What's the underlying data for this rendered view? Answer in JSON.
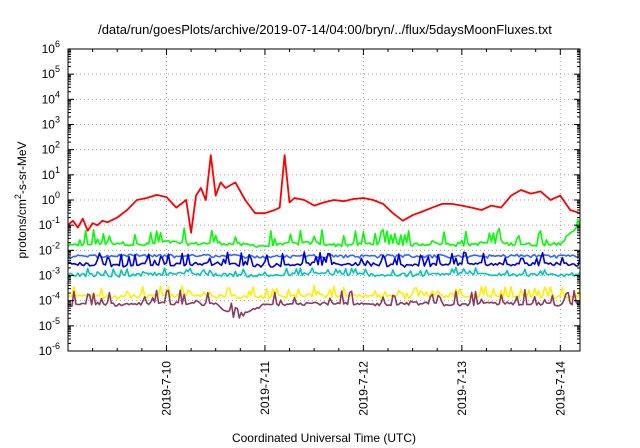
{
  "chart_data": {
    "type": "line",
    "title": "/data/run/goesPlots/archive/2019-07-14/04:00/bryn/../flux/5daysMoonFluxes.txt",
    "xlabel": "Coordinated Universal Time (UTC)",
    "ylabel": {
      "base": "protons/cm",
      "sup": "2",
      "rest": "-s-sr-MeV"
    },
    "yscale": "log",
    "ylim": [
      1e-06,
      1000000.0
    ],
    "xlim": [
      0.0,
      5.2
    ],
    "grid": true,
    "yticks": [
      {
        "value": 1e-06,
        "base": "10",
        "exp": "-6"
      },
      {
        "value": 1e-05,
        "base": "10",
        "exp": "-5"
      },
      {
        "value": 0.0001,
        "base": "10",
        "exp": "-4"
      },
      {
        "value": 0.001,
        "base": "10",
        "exp": "-3"
      },
      {
        "value": 0.01,
        "base": "10",
        "exp": "-2"
      },
      {
        "value": 0.1,
        "base": "10",
        "exp": "-1"
      },
      {
        "value": 1,
        "base": "10",
        "exp": "0"
      },
      {
        "value": 10,
        "base": "10",
        "exp": "1"
      },
      {
        "value": 100,
        "base": "10",
        "exp": "2"
      },
      {
        "value": 1000,
        "base": "10",
        "exp": "3"
      },
      {
        "value": 10000,
        "base": "10",
        "exp": "4"
      },
      {
        "value": 100000,
        "base": "10",
        "exp": "5"
      },
      {
        "value": 1000000,
        "base": "10",
        "exp": "6"
      }
    ],
    "xticks": [
      {
        "value": 1.0,
        "label": "2019-7-10"
      },
      {
        "value": 2.0,
        "label": "2019-7-11"
      },
      {
        "value": 3.0,
        "label": "2019-7-12"
      },
      {
        "value": 4.0,
        "label": "2019-7-13"
      },
      {
        "value": 5.0,
        "label": "2019-7-14"
      }
    ],
    "series": [
      {
        "color": "#ff0000",
        "x": [
          0.0,
          0.05,
          0.1,
          0.15,
          0.2,
          0.25,
          0.3,
          0.35,
          0.4,
          0.5,
          0.6,
          0.7,
          0.8,
          0.9,
          1.0,
          1.1,
          1.2,
          1.25,
          1.3,
          1.35,
          1.4,
          1.45,
          1.5,
          1.55,
          1.6,
          1.7,
          1.8,
          1.9,
          2.0,
          2.1,
          2.15,
          2.2,
          2.25,
          2.3,
          2.4,
          2.5,
          2.6,
          2.7,
          2.8,
          2.9,
          3.0,
          3.1,
          3.2,
          3.3,
          3.4,
          3.5,
          3.6,
          3.7,
          3.8,
          3.9,
          4.0,
          4.1,
          4.2,
          4.3,
          4.4,
          4.5,
          4.6,
          4.7,
          4.8,
          4.9,
          5.0,
          5.1,
          5.2
        ],
        "y": [
          0.1,
          0.15,
          0.08,
          0.18,
          0.06,
          0.12,
          0.1,
          0.15,
          0.13,
          0.2,
          0.4,
          1.0,
          1.2,
          1.6,
          1.3,
          0.5,
          1.0,
          0.05,
          1.5,
          3.0,
          1.0,
          60.0,
          1.5,
          5.0,
          3.0,
          5.0,
          1.0,
          0.3,
          0.3,
          0.4,
          0.5,
          60.0,
          0.8,
          1.2,
          1.0,
          0.6,
          0.8,
          1.0,
          0.9,
          1.1,
          1.2,
          1.0,
          0.7,
          0.3,
          0.15,
          0.25,
          0.35,
          0.5,
          0.7,
          0.7,
          0.6,
          0.5,
          0.4,
          0.6,
          0.5,
          1.5,
          2.5,
          1.8,
          2.2,
          1.0,
          1.5,
          0.4,
          0.3
        ]
      },
      {
        "color": "#00ff00",
        "x": [
          0.0,
          0.25,
          0.5,
          0.75,
          1.0,
          1.25,
          1.5,
          1.75,
          2.0,
          2.25,
          2.5,
          2.75,
          3.0,
          3.25,
          3.5,
          3.75,
          4.0,
          4.25,
          4.5,
          4.75,
          5.0,
          5.2
        ],
        "y": [
          0.015,
          0.018,
          0.02,
          0.016,
          0.022,
          0.018,
          0.02,
          0.017,
          0.015,
          0.018,
          0.02,
          0.016,
          0.018,
          0.02,
          0.017,
          0.019,
          0.016,
          0.02,
          0.018,
          0.017,
          0.019,
          0.1
        ],
        "spike_amp": 4.0
      },
      {
        "color": "#3366ff",
        "x": [
          0.0,
          0.5,
          1.0,
          1.5,
          2.0,
          2.5,
          3.0,
          3.5,
          4.0,
          4.5,
          5.0,
          5.2
        ],
        "y": [
          0.0055,
          0.006,
          0.0058,
          0.006,
          0.0055,
          0.006,
          0.0058,
          0.006,
          0.0055,
          0.006,
          0.0058,
          0.006
        ],
        "spike_amp": 1.2
      },
      {
        "color": "#0000dd",
        "x": [
          0.0,
          0.5,
          1.0,
          1.5,
          2.0,
          2.5,
          3.0,
          3.5,
          4.0,
          4.5,
          5.0,
          5.2
        ],
        "y": [
          0.003,
          0.0025,
          0.0028,
          0.003,
          0.0025,
          0.003,
          0.0028,
          0.0025,
          0.003,
          0.0028,
          0.003,
          0.0025
        ],
        "spike_amp": 3.0
      },
      {
        "color": "#00c8b4",
        "x": [
          0.0,
          0.5,
          1.0,
          1.5,
          2.0,
          2.5,
          3.0,
          3.5,
          4.0,
          4.5,
          5.0,
          5.2
        ],
        "y": [
          0.0011,
          0.001,
          0.0012,
          0.0011,
          0.001,
          0.0012,
          0.0011,
          0.001,
          0.0012,
          0.0011,
          0.001,
          0.0012
        ],
        "spike_amp": 1.8
      },
      {
        "color": "#ffee00",
        "x": [
          0.0,
          0.5,
          1.0,
          1.5,
          2.0,
          2.5,
          3.0,
          3.5,
          4.0,
          4.5,
          5.0,
          5.2
        ],
        "y": [
          0.00015,
          0.00014,
          0.00016,
          0.00015,
          0.00014,
          0.00016,
          0.00015,
          0.00014,
          0.00016,
          0.00015,
          0.00014,
          0.00015
        ],
        "spike_amp": 2.5
      },
      {
        "color": "#8b3a62",
        "x": [
          0.0,
          0.5,
          1.0,
          1.5,
          1.7,
          2.0,
          2.5,
          3.0,
          3.5,
          4.0,
          4.5,
          5.0,
          5.2
        ],
        "y": [
          7e-05,
          7e-05,
          8e-05,
          7e-05,
          2e-05,
          7e-05,
          8e-05,
          7e-05,
          8e-05,
          7e-05,
          8e-05,
          7e-05,
          8e-05
        ],
        "spike_amp": 3.5
      }
    ]
  }
}
